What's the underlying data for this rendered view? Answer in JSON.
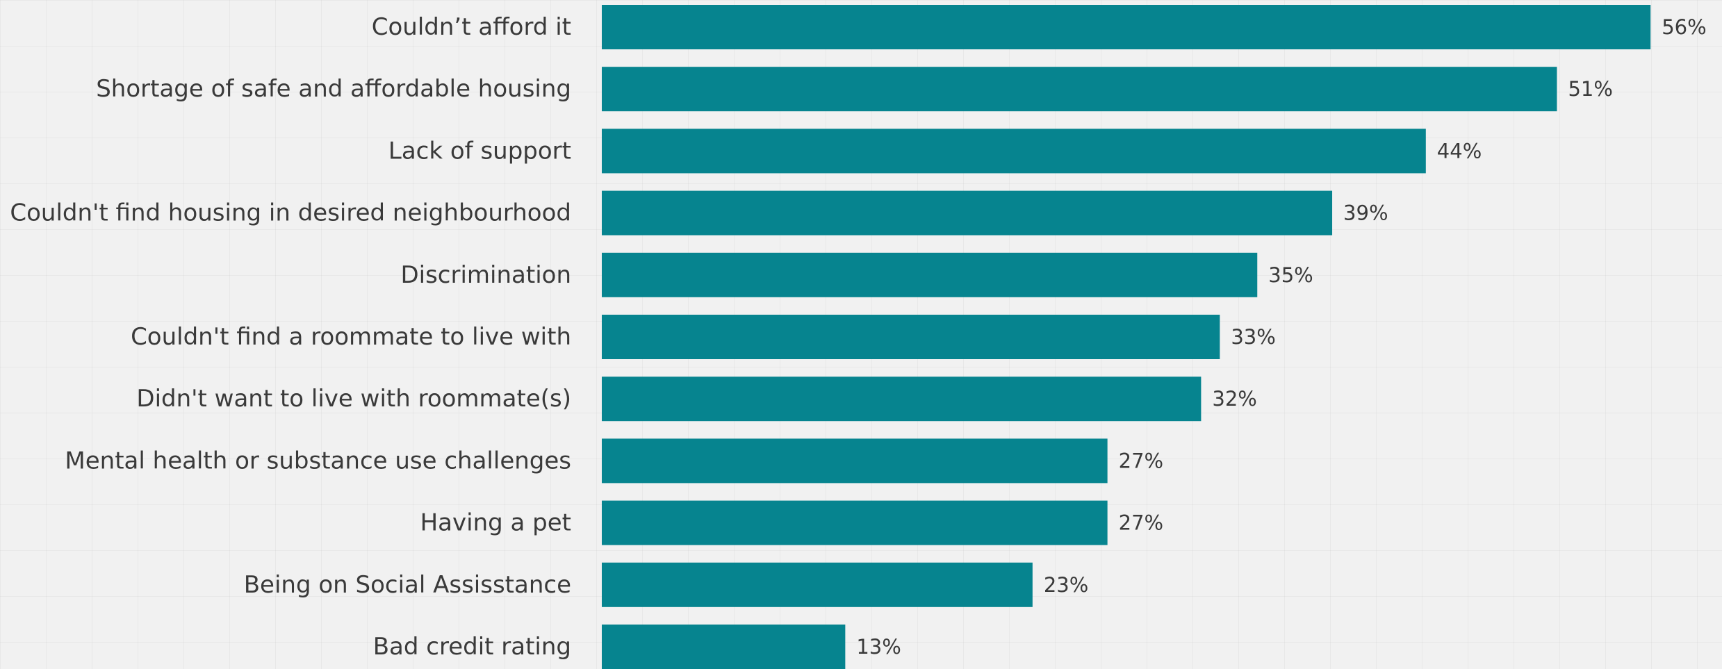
{
  "chart_data": {
    "type": "bar",
    "orientation": "horizontal",
    "categories": [
      "Couldn’t afford it",
      "Shortage of safe and affordable housing",
      "Lack of support",
      "Couldn't find housing in desired neighbourhood",
      "Discrimination",
      "Couldn't find a roommate to live with",
      "Didn't want to live with roommate(s)",
      "Mental health or substance use challenges",
      "Having a pet",
      "Being on Social Assisstance",
      "Bad credit rating"
    ],
    "values": [
      56,
      51,
      44,
      39,
      35,
      33,
      32,
      27,
      27,
      23,
      13
    ],
    "value_labels": [
      "56%",
      "51%",
      "44%",
      "39%",
      "35%",
      "33%",
      "32%",
      "27%",
      "27%",
      "23%",
      "13%"
    ],
    "bar_color": "#06848f",
    "title": "",
    "xlabel": "",
    "ylabel": "",
    "xlim": [
      0,
      58
    ],
    "grid": false
  }
}
